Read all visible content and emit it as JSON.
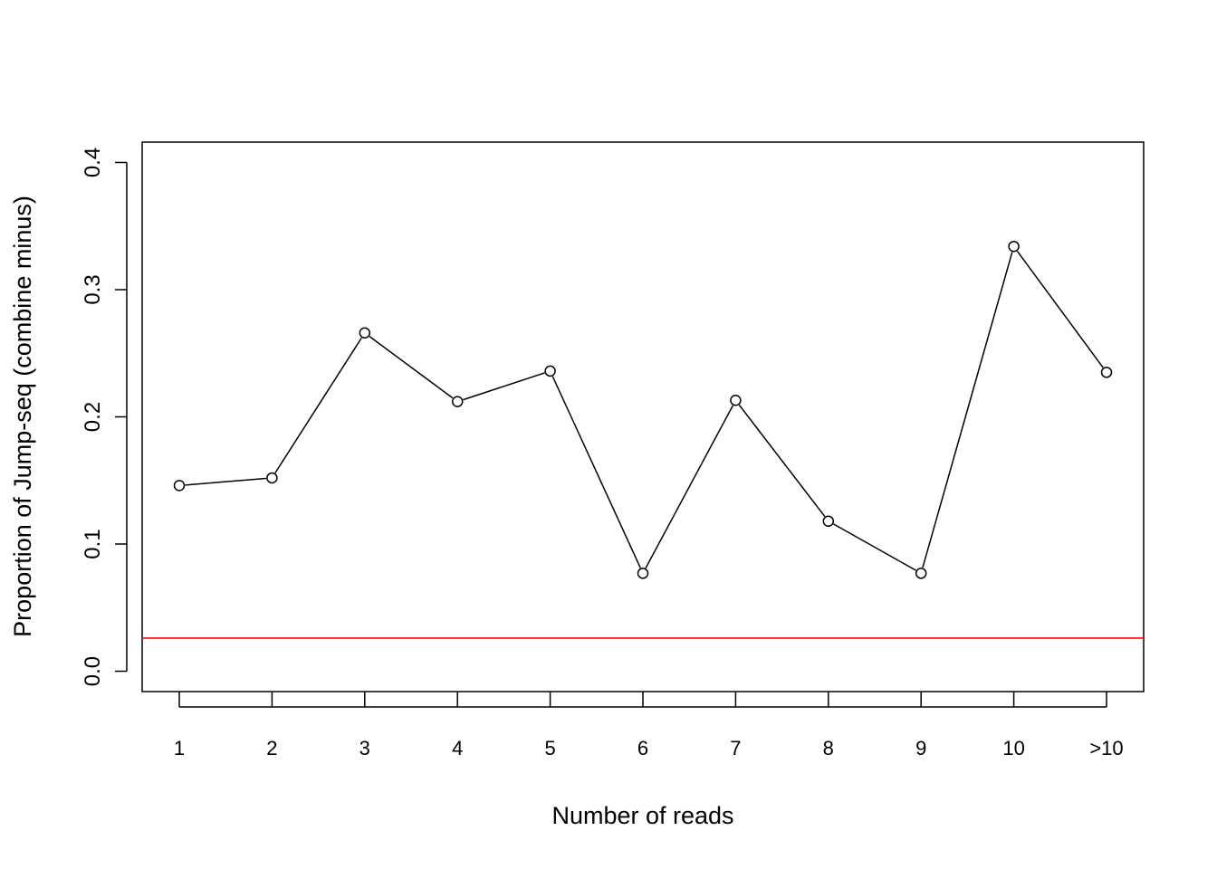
{
  "chart_data": {
    "type": "line",
    "title": "",
    "xlabel": "Number of reads",
    "ylabel": "Proportion of Jump-seq (combine minus)",
    "categories": [
      "1",
      "2",
      "3",
      "4",
      "5",
      "6",
      "7",
      "8",
      "9",
      "10",
      ">10"
    ],
    "series": [
      {
        "name": "",
        "values": [
          0.146,
          0.152,
          0.266,
          0.212,
          0.236,
          0.077,
          0.213,
          0.118,
          0.077,
          0.334,
          0.235
        ],
        "color": "#000000",
        "marker": "open-circle"
      }
    ],
    "reference_line": {
      "y": 0.026,
      "color": "#ff0000"
    },
    "ylim": [
      -0.016,
      0.416
    ],
    "yticks": [
      0.0,
      0.1,
      0.2,
      0.3,
      0.4
    ],
    "ytick_labels": [
      "0.0",
      "0.1",
      "0.2",
      "0.3",
      "0.4"
    ],
    "grid": false,
    "legend": "none"
  }
}
